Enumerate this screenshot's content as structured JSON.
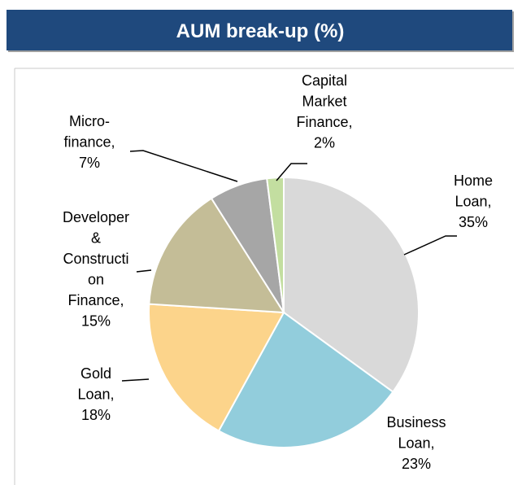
{
  "chart_data": {
    "type": "pie",
    "title": "AUM break-up  (%)",
    "categories": [
      "Home\nLoan,",
      "Business\nLoan,",
      "Gold\nLoan,",
      "Developer\n&\nConstructi\non\nFinance,",
      "Micro-\nfinance,",
      "Capital\nMarket\nFinance,"
    ],
    "values": [
      35,
      23,
      18,
      15,
      7,
      2
    ],
    "value_labels": [
      "35%",
      "23%",
      "18%",
      "15%",
      "7%",
      "2%"
    ],
    "colors": [
      "#d9d9d9",
      "#92cddc",
      "#fcd48b",
      "#c4bd97",
      "#a6a6a6",
      "#c3dea0"
    ]
  }
}
